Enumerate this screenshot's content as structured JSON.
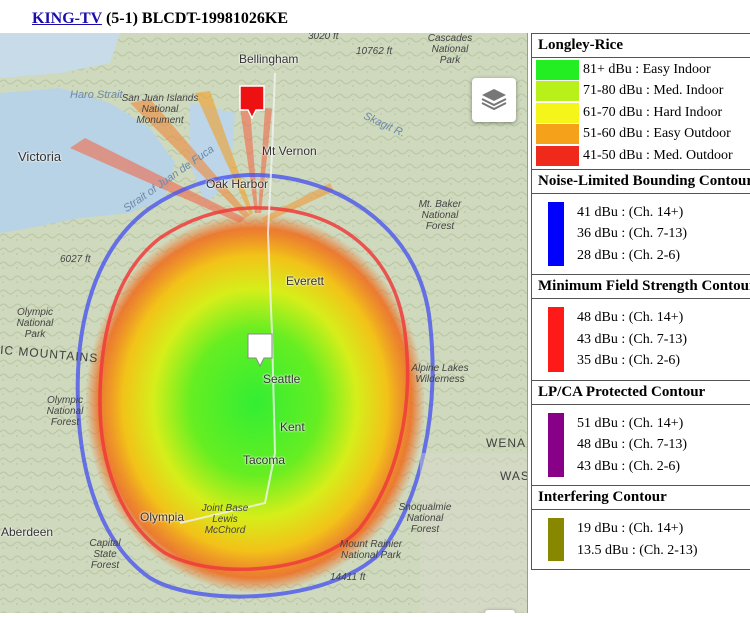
{
  "header": {
    "call_sign": "KING-TV",
    "details": " (5-1) BLCDT-19981026KE"
  },
  "map": {
    "labels": {
      "bellingham": "Bellingham",
      "victoria": "Victoria",
      "mt_vernon": "Mt Vernon",
      "oak_harbor": "Oak Harbor",
      "everett": "Everett",
      "seattle": "Seattle",
      "kent": "Kent",
      "tacoma": "Tacoma",
      "olympia": "Olympia",
      "aberdeen": "Aberdeen",
      "san_juan": "San Juan Islands National Monument",
      "cascades": "Cascades National Park",
      "baker": "Mt. Baker National Forest",
      "olympic": "Olympic National Park",
      "olympic2": "Olympic National Forest",
      "alpine": "Alpine Lakes Wilderness",
      "snoqualmie": "Snoqualmie National Forest",
      "rainier": "Mount Rainier National Park",
      "capital": "Capital State Forest",
      "jblm": "Joint Base Lewis McChord",
      "haro": "Haro Strait",
      "juan_de_fuca": "Strait of Juan de Fuca",
      "skagit": "Skagit R.",
      "elev1": "3020 ft",
      "elev2": "10762 ft",
      "elev3": "6027 ft",
      "elev4": "14411 ft",
      "mountains": "IC MOUNTAINS",
      "wena": "WENA",
      "was": "WAS"
    },
    "icons": {
      "layers": "layers-icon",
      "fullscreen": "fullscreen-icon",
      "tower_marker": "tower-marker-icon",
      "station_marker": "station-marker-icon"
    }
  },
  "legend": {
    "longley": {
      "title": "Longley-Rice",
      "rows": [
        {
          "color": "#22ee22",
          "label": "81+ dBu : Easy Indoor"
        },
        {
          "color": "#b8f01a",
          "label": "71-80 dBu : Med. Indoor"
        },
        {
          "color": "#f5f51a",
          "label": "61-70 dBu : Hard Indoor"
        },
        {
          "color": "#f5a21a",
          "label": "51-60 dBu : Easy Outdoor"
        },
        {
          "color": "#f02a1a",
          "label": "41-50 dBu : Med. Outdoor"
        }
      ]
    },
    "contours": [
      {
        "title": "Noise-Limited Bounding Contour",
        "color": "#0000ff",
        "items": [
          "41 dBu : (Ch. 14+)",
          "36 dBu : (Ch. 7-13)",
          "28 dBu : (Ch. 2-6)"
        ]
      },
      {
        "title": "Minimum Field Strength Contour",
        "color": "#ff1a1a",
        "items": [
          "48 dBu : (Ch. 14+)",
          "43 dBu : (Ch. 7-13)",
          "35 dBu : (Ch. 2-6)"
        ]
      },
      {
        "title": "LP/CA Protected Contour",
        "color": "#880088",
        "items": [
          "51 dBu : (Ch. 14+)",
          "48 dBu : (Ch. 7-13)",
          "43 dBu : (Ch. 2-6)"
        ]
      },
      {
        "title": "Interfering Contour",
        "color": "#888800",
        "items": [
          "19 dBu : (Ch. 14+)",
          "13.5 dBu : (Ch. 2-13)"
        ]
      }
    ]
  }
}
